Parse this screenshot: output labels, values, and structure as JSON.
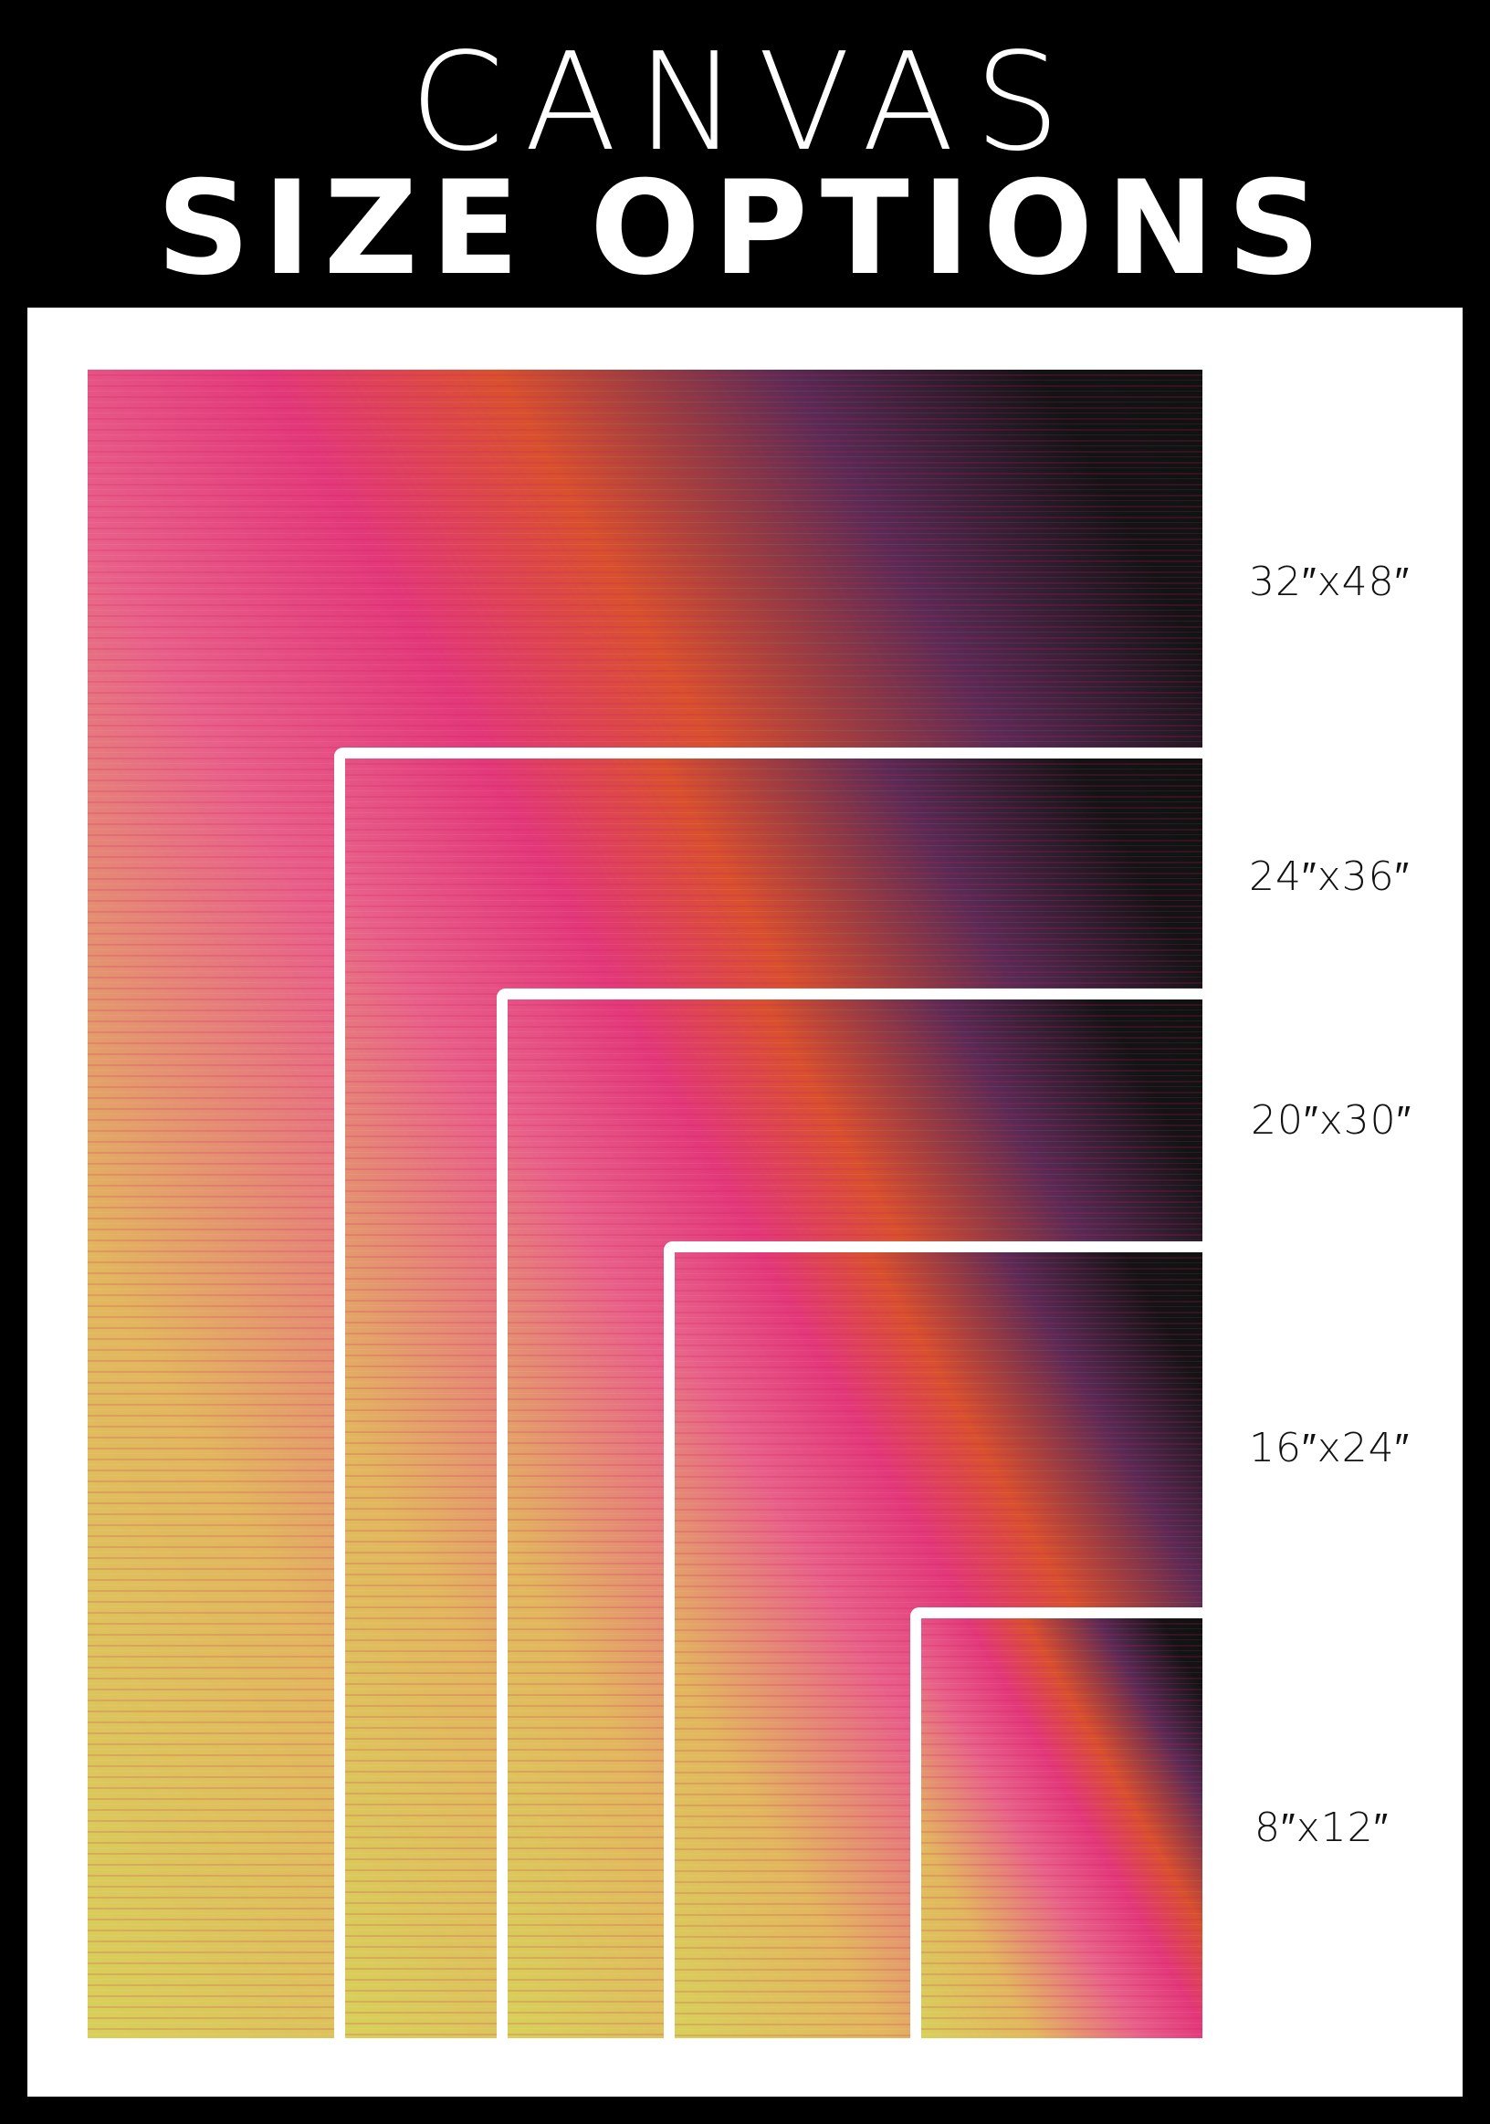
{
  "header": {
    "line1": "CANVAS",
    "line2": "SIZE OPTIONS"
  },
  "sizes": [
    {
      "label": "32″x48″"
    },
    {
      "label": "24″x36″"
    },
    {
      "label": "20″x30″"
    },
    {
      "label": "16″x24″"
    },
    {
      "label": "8″x12″"
    }
  ],
  "colors": {
    "background": "#000000",
    "panel": "#ffffff",
    "art_yellow": "#d8d05a",
    "art_pink": "#e3387a",
    "art_orange": "#d9502e",
    "art_dark": "#111111"
  }
}
